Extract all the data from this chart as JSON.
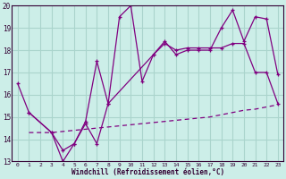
{
  "xlabel": "Windchill (Refroidissement éolien,°C)",
  "bg_color": "#cceee8",
  "grid_color": "#aad4cc",
  "line_color": "#800080",
  "xlim": [
    -0.5,
    23.5
  ],
  "ylim": [
    13,
    20
  ],
  "yticks": [
    13,
    14,
    15,
    16,
    17,
    18,
    19,
    20
  ],
  "xticks": [
    0,
    1,
    2,
    3,
    4,
    5,
    6,
    7,
    8,
    9,
    10,
    11,
    12,
    13,
    14,
    15,
    16,
    17,
    18,
    19,
    20,
    21,
    22,
    23
  ],
  "line1_x": [
    0,
    1,
    3,
    4,
    5,
    6,
    7,
    8,
    9,
    10,
    11,
    12,
    13,
    14,
    15,
    16,
    17,
    18,
    19,
    20,
    21,
    22,
    23
  ],
  "line1_y": [
    16.5,
    15.2,
    14.3,
    13.5,
    13.8,
    14.8,
    17.5,
    15.6,
    19.5,
    20.0,
    16.6,
    17.8,
    18.4,
    17.8,
    18.0,
    18.0,
    18.0,
    19.0,
    19.8,
    18.4,
    19.5,
    19.4,
    16.9
  ],
  "line2_x": [
    1,
    3,
    4,
    5,
    6,
    7,
    8,
    12,
    13,
    14,
    15,
    16,
    17,
    18,
    19,
    20,
    21,
    22,
    23
  ],
  "line2_y": [
    15.2,
    14.3,
    13.0,
    13.8,
    14.7,
    13.8,
    15.6,
    17.8,
    18.3,
    18.0,
    18.1,
    18.1,
    18.1,
    18.1,
    18.3,
    18.3,
    17.0,
    17.0,
    15.6
  ],
  "line3_x": [
    1,
    2,
    3,
    4,
    5,
    6,
    7,
    8,
    9,
    10,
    11,
    12,
    13,
    14,
    15,
    16,
    17,
    18,
    19,
    20,
    21,
    22,
    23
  ],
  "line3_y": [
    14.3,
    14.3,
    14.3,
    14.35,
    14.4,
    14.45,
    14.5,
    14.55,
    14.6,
    14.65,
    14.7,
    14.75,
    14.8,
    14.85,
    14.9,
    14.95,
    15.0,
    15.1,
    15.2,
    15.3,
    15.35,
    15.45,
    15.55
  ]
}
